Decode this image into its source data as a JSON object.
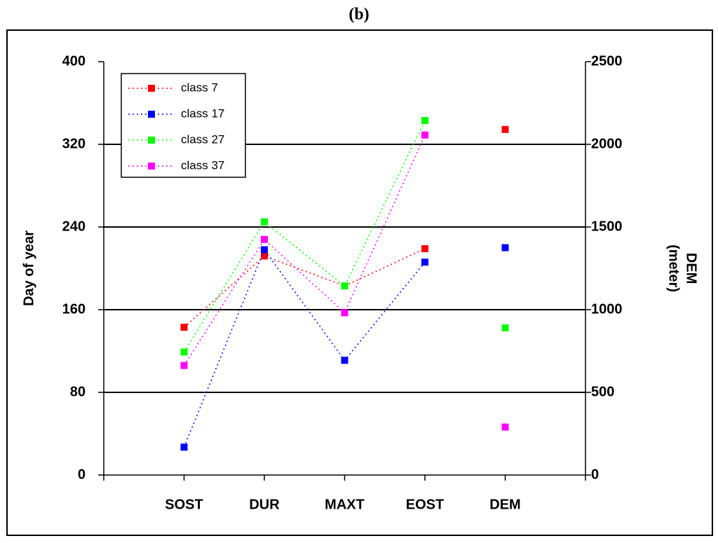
{
  "chart_data": {
    "type": "line",
    "title": "(b)",
    "y_label": "Day of year",
    "y2_label": [
      "DEM",
      "(meter)"
    ],
    "categories": [
      "SOST",
      "DUR",
      "MAXT",
      "EOST",
      "DEM"
    ],
    "y2_categories": [
      "DEM"
    ],
    "series": [
      {
        "name": "class 7",
        "color": "#ff0000",
        "values": [
          143,
          212,
          183,
          219,
          2090
        ]
      },
      {
        "name": "class 17",
        "color": "#0000ff",
        "values": [
          27,
          218,
          111,
          206,
          1375
        ]
      },
      {
        "name": "class 27",
        "color": "#00ff00",
        "values": [
          119,
          245,
          183,
          343,
          890
        ]
      },
      {
        "name": "class 37",
        "color": "#ff00ff",
        "values": [
          106,
          228,
          157,
          329,
          290
        ]
      }
    ],
    "ylim": [
      0,
      400
    ],
    "yticks": [
      0,
      80,
      160,
      240,
      320,
      400
    ],
    "y2lim": [
      0,
      2500
    ],
    "y2ticks": [
      0,
      500,
      1000,
      1500,
      2000,
      2500
    ],
    "grid": true,
    "legend": "upper left"
  }
}
